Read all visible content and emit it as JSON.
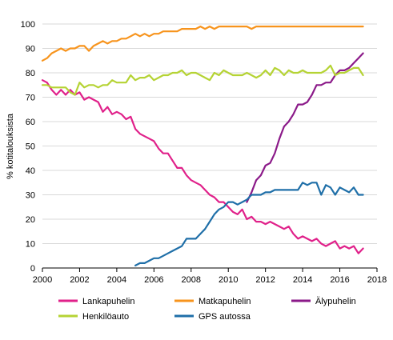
{
  "chart_data": {
    "type": "line",
    "title": "",
    "xlabel": "",
    "ylabel": "% kotitalouksista",
    "xlim": [
      2000,
      2018
    ],
    "ylim": [
      0,
      100
    ],
    "x_ticks": [
      2000,
      2002,
      2004,
      2006,
      2008,
      2010,
      2012,
      2014,
      2016,
      2018
    ],
    "y_ticks": [
      0,
      10,
      20,
      30,
      40,
      50,
      60,
      70,
      80,
      90,
      100
    ],
    "grid": "horizontal",
    "legend_position": "bottom",
    "series": [
      {
        "name": "Lankapuhelin",
        "color": "#e0218a",
        "points": [
          [
            2000.0,
            77
          ],
          [
            2000.25,
            76
          ],
          [
            2000.5,
            73
          ],
          [
            2000.75,
            71
          ],
          [
            2001.0,
            73
          ],
          [
            2001.25,
            71
          ],
          [
            2001.5,
            73
          ],
          [
            2001.75,
            71
          ],
          [
            2002.0,
            72
          ],
          [
            2002.25,
            69
          ],
          [
            2002.5,
            70
          ],
          [
            2002.75,
            69
          ],
          [
            2003.0,
            68
          ],
          [
            2003.25,
            64
          ],
          [
            2003.5,
            66
          ],
          [
            2003.75,
            63
          ],
          [
            2004.0,
            64
          ],
          [
            2004.25,
            63
          ],
          [
            2004.5,
            61
          ],
          [
            2004.75,
            62
          ],
          [
            2005.0,
            57
          ],
          [
            2005.25,
            55
          ],
          [
            2005.5,
            54
          ],
          [
            2005.75,
            53
          ],
          [
            2006.0,
            52
          ],
          [
            2006.25,
            49
          ],
          [
            2006.5,
            47
          ],
          [
            2006.75,
            47
          ],
          [
            2007.0,
            44
          ],
          [
            2007.25,
            41
          ],
          [
            2007.5,
            41
          ],
          [
            2007.75,
            38
          ],
          [
            2008.0,
            36
          ],
          [
            2008.25,
            35
          ],
          [
            2008.5,
            34
          ],
          [
            2008.75,
            32
          ],
          [
            2009.0,
            30
          ],
          [
            2009.25,
            29
          ],
          [
            2009.5,
            27
          ],
          [
            2009.75,
            27
          ],
          [
            2010.0,
            25
          ],
          [
            2010.25,
            23
          ],
          [
            2010.5,
            22
          ],
          [
            2010.75,
            24
          ],
          [
            2011.0,
            20
          ],
          [
            2011.25,
            21
          ],
          [
            2011.5,
            19
          ],
          [
            2011.75,
            19
          ],
          [
            2012.0,
            18
          ],
          [
            2012.25,
            19
          ],
          [
            2012.5,
            18
          ],
          [
            2012.75,
            17
          ],
          [
            2013.0,
            16
          ],
          [
            2013.25,
            17
          ],
          [
            2013.5,
            14
          ],
          [
            2013.75,
            12
          ],
          [
            2014.0,
            13
          ],
          [
            2014.25,
            12
          ],
          [
            2014.5,
            11
          ],
          [
            2014.75,
            12
          ],
          [
            2015.0,
            10
          ],
          [
            2015.25,
            9
          ],
          [
            2015.5,
            10
          ],
          [
            2015.75,
            11
          ],
          [
            2016.0,
            8
          ],
          [
            2016.25,
            9
          ],
          [
            2016.5,
            8
          ],
          [
            2016.75,
            9
          ],
          [
            2017.0,
            6
          ],
          [
            2017.25,
            8
          ]
        ]
      },
      {
        "name": "Matkapuhelin",
        "color": "#f7941d",
        "points": [
          [
            2000.0,
            85
          ],
          [
            2000.25,
            86
          ],
          [
            2000.5,
            88
          ],
          [
            2000.75,
            89
          ],
          [
            2001.0,
            90
          ],
          [
            2001.25,
            89
          ],
          [
            2001.5,
            90
          ],
          [
            2001.75,
            90
          ],
          [
            2002.0,
            91
          ],
          [
            2002.25,
            91
          ],
          [
            2002.5,
            89
          ],
          [
            2002.75,
            91
          ],
          [
            2003.0,
            92
          ],
          [
            2003.25,
            93
          ],
          [
            2003.5,
            92
          ],
          [
            2003.75,
            93
          ],
          [
            2004.0,
            93
          ],
          [
            2004.25,
            94
          ],
          [
            2004.5,
            94
          ],
          [
            2004.75,
            95
          ],
          [
            2005.0,
            96
          ],
          [
            2005.25,
            95
          ],
          [
            2005.5,
            96
          ],
          [
            2005.75,
            95
          ],
          [
            2006.0,
            96
          ],
          [
            2006.25,
            96
          ],
          [
            2006.5,
            97
          ],
          [
            2006.75,
            97
          ],
          [
            2007.0,
            97
          ],
          [
            2007.25,
            97
          ],
          [
            2007.5,
            98
          ],
          [
            2007.75,
            98
          ],
          [
            2008.0,
            98
          ],
          [
            2008.25,
            98
          ],
          [
            2008.5,
            99
          ],
          [
            2008.75,
            98
          ],
          [
            2009.0,
            99
          ],
          [
            2009.25,
            98
          ],
          [
            2009.5,
            99
          ],
          [
            2009.75,
            99
          ],
          [
            2010.0,
            99
          ],
          [
            2010.25,
            99
          ],
          [
            2010.5,
            99
          ],
          [
            2010.75,
            99
          ],
          [
            2011.0,
            99
          ],
          [
            2011.25,
            98
          ],
          [
            2011.5,
            99
          ],
          [
            2011.75,
            99
          ],
          [
            2012.0,
            99
          ],
          [
            2012.25,
            99
          ],
          [
            2012.5,
            99
          ],
          [
            2012.75,
            99
          ],
          [
            2013.0,
            99
          ],
          [
            2013.25,
            99
          ],
          [
            2013.5,
            99
          ],
          [
            2013.75,
            99
          ],
          [
            2014.0,
            99
          ],
          [
            2014.25,
            99
          ],
          [
            2014.5,
            99
          ],
          [
            2014.75,
            99
          ],
          [
            2015.0,
            99
          ],
          [
            2015.25,
            99
          ],
          [
            2015.5,
            99
          ],
          [
            2015.75,
            99
          ],
          [
            2016.0,
            99
          ],
          [
            2016.25,
            99
          ],
          [
            2016.5,
            99
          ],
          [
            2016.75,
            99
          ],
          [
            2017.0,
            99
          ],
          [
            2017.25,
            99
          ]
        ]
      },
      {
        "name": "Älypuhelin",
        "color": "#8b1a89",
        "points": [
          [
            2011.0,
            27
          ],
          [
            2011.25,
            31
          ],
          [
            2011.5,
            36
          ],
          [
            2011.75,
            38
          ],
          [
            2012.0,
            42
          ],
          [
            2012.25,
            43
          ],
          [
            2012.5,
            47
          ],
          [
            2012.75,
            53
          ],
          [
            2013.0,
            58
          ],
          [
            2013.25,
            60
          ],
          [
            2013.5,
            63
          ],
          [
            2013.75,
            67
          ],
          [
            2014.0,
            67
          ],
          [
            2014.25,
            68
          ],
          [
            2014.5,
            71
          ],
          [
            2014.75,
            75
          ],
          [
            2015.0,
            75
          ],
          [
            2015.25,
            76
          ],
          [
            2015.5,
            76
          ],
          [
            2015.75,
            79
          ],
          [
            2016.0,
            81
          ],
          [
            2016.25,
            81
          ],
          [
            2016.5,
            82
          ],
          [
            2016.75,
            84
          ],
          [
            2017.0,
            86
          ],
          [
            2017.25,
            88
          ]
        ]
      },
      {
        "name": "Henkilöauto",
        "color": "#b5d334",
        "points": [
          [
            2000.0,
            75
          ],
          [
            2000.25,
            75
          ],
          [
            2000.5,
            74
          ],
          [
            2000.75,
            74
          ],
          [
            2001.0,
            74
          ],
          [
            2001.25,
            74
          ],
          [
            2001.5,
            72
          ],
          [
            2001.75,
            71
          ],
          [
            2002.0,
            76
          ],
          [
            2002.25,
            74
          ],
          [
            2002.5,
            75
          ],
          [
            2002.75,
            75
          ],
          [
            2003.0,
            74
          ],
          [
            2003.25,
            75
          ],
          [
            2003.5,
            75
          ],
          [
            2003.75,
            77
          ],
          [
            2004.0,
            76
          ],
          [
            2004.25,
            76
          ],
          [
            2004.5,
            76
          ],
          [
            2004.75,
            79
          ],
          [
            2005.0,
            77
          ],
          [
            2005.25,
            78
          ],
          [
            2005.5,
            78
          ],
          [
            2005.75,
            79
          ],
          [
            2006.0,
            77
          ],
          [
            2006.25,
            78
          ],
          [
            2006.5,
            79
          ],
          [
            2006.75,
            79
          ],
          [
            2007.0,
            80
          ],
          [
            2007.25,
            80
          ],
          [
            2007.5,
            81
          ],
          [
            2007.75,
            79
          ],
          [
            2008.0,
            80
          ],
          [
            2008.25,
            80
          ],
          [
            2008.5,
            79
          ],
          [
            2008.75,
            78
          ],
          [
            2009.0,
            77
          ],
          [
            2009.25,
            80
          ],
          [
            2009.5,
            79
          ],
          [
            2009.75,
            81
          ],
          [
            2010.0,
            80
          ],
          [
            2010.25,
            79
          ],
          [
            2010.5,
            79
          ],
          [
            2010.75,
            79
          ],
          [
            2011.0,
            80
          ],
          [
            2011.25,
            79
          ],
          [
            2011.5,
            78
          ],
          [
            2011.75,
            79
          ],
          [
            2012.0,
            81
          ],
          [
            2012.25,
            79
          ],
          [
            2012.5,
            82
          ],
          [
            2012.75,
            81
          ],
          [
            2013.0,
            79
          ],
          [
            2013.25,
            81
          ],
          [
            2013.5,
            80
          ],
          [
            2013.75,
            80
          ],
          [
            2014.0,
            81
          ],
          [
            2014.25,
            80
          ],
          [
            2014.5,
            80
          ],
          [
            2014.75,
            80
          ],
          [
            2015.0,
            80
          ],
          [
            2015.25,
            81
          ],
          [
            2015.5,
            83
          ],
          [
            2015.75,
            79
          ],
          [
            2016.0,
            80
          ],
          [
            2016.25,
            80
          ],
          [
            2016.5,
            81
          ],
          [
            2016.75,
            82
          ],
          [
            2017.0,
            82
          ],
          [
            2017.25,
            79
          ]
        ]
      },
      {
        "name": "GPS autossa",
        "color": "#1f6fa8",
        "points": [
          [
            2005.0,
            1
          ],
          [
            2005.25,
            2
          ],
          [
            2005.5,
            2
          ],
          [
            2005.75,
            3
          ],
          [
            2006.0,
            4
          ],
          [
            2006.25,
            4
          ],
          [
            2006.5,
            5
          ],
          [
            2006.75,
            6
          ],
          [
            2007.0,
            7
          ],
          [
            2007.25,
            8
          ],
          [
            2007.5,
            9
          ],
          [
            2007.75,
            12
          ],
          [
            2008.0,
            12
          ],
          [
            2008.25,
            12
          ],
          [
            2008.5,
            14
          ],
          [
            2008.75,
            16
          ],
          [
            2009.0,
            19
          ],
          [
            2009.25,
            22
          ],
          [
            2009.5,
            24
          ],
          [
            2009.75,
            25
          ],
          [
            2010.0,
            27
          ],
          [
            2010.25,
            27
          ],
          [
            2010.5,
            26
          ],
          [
            2010.75,
            27
          ],
          [
            2011.0,
            28
          ],
          [
            2011.25,
            30
          ],
          [
            2011.5,
            30
          ],
          [
            2011.75,
            30
          ],
          [
            2012.0,
            31
          ],
          [
            2012.25,
            31
          ],
          [
            2012.5,
            32
          ],
          [
            2012.75,
            32
          ],
          [
            2013.0,
            32
          ],
          [
            2013.25,
            32
          ],
          [
            2013.5,
            32
          ],
          [
            2013.75,
            32
          ],
          [
            2014.0,
            35
          ],
          [
            2014.25,
            34
          ],
          [
            2014.5,
            35
          ],
          [
            2014.75,
            35
          ],
          [
            2015.0,
            30
          ],
          [
            2015.25,
            34
          ],
          [
            2015.5,
            33
          ],
          [
            2015.75,
            30
          ],
          [
            2016.0,
            33
          ],
          [
            2016.25,
            32
          ],
          [
            2016.5,
            31
          ],
          [
            2016.75,
            33
          ],
          [
            2017.0,
            30
          ],
          [
            2017.25,
            30
          ]
        ]
      }
    ],
    "legend": [
      [
        "Lankapuhelin",
        "Matkapuhelin",
        "Älypuhelin"
      ],
      [
        "Henkilöauto",
        "GPS autossa"
      ]
    ]
  }
}
